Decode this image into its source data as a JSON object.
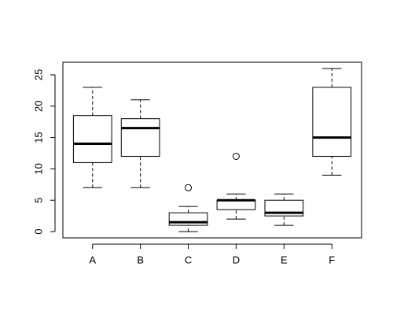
{
  "chart_data": {
    "type": "boxplot",
    "categories": [
      "A",
      "B",
      "C",
      "D",
      "E",
      "F"
    ],
    "stats": [
      [
        7,
        11,
        14,
        18.5,
        23
      ],
      [
        7,
        12,
        16.5,
        18,
        21
      ],
      [
        0,
        1,
        1.5,
        3,
        4
      ],
      [
        2,
        3.5,
        5,
        5,
        6
      ],
      [
        1,
        2.5,
        3,
        5,
        6
      ],
      [
        9,
        12,
        15,
        23,
        26
      ]
    ],
    "outliers": [
      [],
      [],
      [
        7
      ],
      [
        12
      ],
      [],
      []
    ],
    "ylim": [
      -1,
      27
    ],
    "yticks": [
      0,
      5,
      10,
      15,
      20,
      25
    ],
    "color": "#ffffff"
  }
}
